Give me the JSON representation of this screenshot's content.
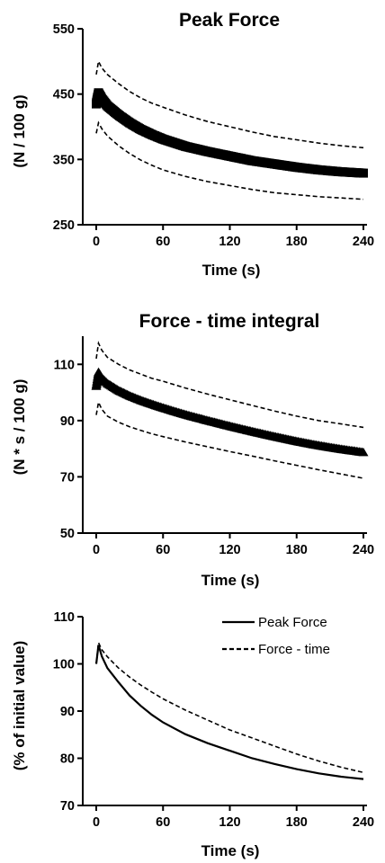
{
  "chart_data": [
    {
      "type": "scatter",
      "title": "Peak Force",
      "xlabel": "Time (s)",
      "ylabel": "(N / 100 g)",
      "xlim": [
        -6,
        246
      ],
      "ylim": [
        250,
        550
      ],
      "xticks": [
        0,
        60,
        120,
        180,
        240
      ],
      "yticks": [
        250,
        350,
        450,
        550
      ],
      "grid": false,
      "series": [
        {
          "role": "mean",
          "style": "square-markers",
          "x": [
            0,
            2,
            5,
            10,
            20,
            30,
            40,
            50,
            60,
            80,
            100,
            120,
            140,
            160,
            180,
            200,
            220,
            240
          ],
          "y": [
            435,
            452,
            443,
            432,
            418,
            406,
            396,
            388,
            381,
            370,
            362,
            355,
            348,
            343,
            338,
            334,
            331,
            329
          ]
        },
        {
          "role": "upper band",
          "style": "dashed",
          "x": [
            0,
            2,
            5,
            10,
            20,
            30,
            40,
            50,
            60,
            80,
            100,
            120,
            140,
            160,
            180,
            200,
            220,
            240
          ],
          "y": [
            480,
            500,
            490,
            480,
            466,
            454,
            444,
            436,
            430,
            418,
            408,
            400,
            392,
            385,
            380,
            375,
            371,
            368
          ]
        },
        {
          "role": "lower band",
          "style": "dashed",
          "x": [
            0,
            2,
            5,
            10,
            20,
            30,
            40,
            50,
            60,
            80,
            100,
            120,
            140,
            160,
            180,
            200,
            220,
            240
          ],
          "y": [
            390,
            406,
            397,
            386,
            371,
            359,
            349,
            341,
            334,
            324,
            316,
            310,
            304,
            299,
            296,
            293,
            291,
            289
          ]
        }
      ]
    },
    {
      "type": "scatter",
      "title": "Force - time integral",
      "xlabel": "Time (s)",
      "ylabel": "(N * s / 100 g)",
      "xlim": [
        -6,
        246
      ],
      "ylim": [
        50,
        120
      ],
      "xticks": [
        0,
        60,
        120,
        180,
        240
      ],
      "yticks": [
        50,
        70,
        90,
        110
      ],
      "grid": false,
      "series": [
        {
          "role": "mean",
          "style": "triangle-markers",
          "x": [
            0,
            2,
            5,
            10,
            20,
            30,
            40,
            50,
            60,
            80,
            100,
            120,
            140,
            160,
            180,
            200,
            220,
            240
          ],
          "y": [
            102,
            107,
            105,
            103,
            100.5,
            98.6,
            97,
            95.6,
            94.3,
            91.9,
            89.8,
            87.8,
            85.9,
            84.1,
            82.4,
            80.9,
            79.6,
            78.5
          ]
        },
        {
          "role": "upper band",
          "style": "dashed",
          "x": [
            0,
            2,
            5,
            10,
            20,
            30,
            40,
            50,
            60,
            80,
            100,
            120,
            140,
            160,
            180,
            200,
            220,
            240
          ],
          "y": [
            112,
            117.5,
            115,
            112.5,
            110,
            108,
            106.5,
            105,
            104,
            101.6,
            99.4,
            97.4,
            95.4,
            93.4,
            91.6,
            90,
            88.8,
            87.6
          ]
        },
        {
          "role": "lower band",
          "style": "dashed",
          "x": [
            0,
            2,
            5,
            10,
            20,
            30,
            40,
            50,
            60,
            80,
            100,
            120,
            140,
            160,
            180,
            200,
            220,
            240
          ],
          "y": [
            92,
            96.5,
            94,
            91.6,
            89.4,
            87.8,
            86.5,
            85.3,
            84.3,
            82.4,
            80.7,
            79,
            77.4,
            75.7,
            74.1,
            72.5,
            71,
            69.5
          ]
        }
      ]
    },
    {
      "type": "line",
      "title": "",
      "xlabel": "Time (s)",
      "ylabel": "(% of initial value)",
      "xlim": [
        -6,
        246
      ],
      "ylim": [
        70,
        110
      ],
      "xticks": [
        0,
        60,
        120,
        180,
        240
      ],
      "yticks": [
        70,
        80,
        90,
        100,
        110
      ],
      "grid": false,
      "legend": "top-right",
      "series": [
        {
          "name": "Peak Force",
          "style": "solid",
          "x": [
            0,
            2,
            5,
            10,
            20,
            30,
            40,
            50,
            60,
            80,
            100,
            120,
            140,
            160,
            180,
            200,
            220,
            240
          ],
          "y": [
            100,
            104,
            101.6,
            99.1,
            96.1,
            93.3,
            91.1,
            89.2,
            87.6,
            85.1,
            83.2,
            81.6,
            80,
            78.8,
            77.7,
            76.8,
            76.1,
            75.6
          ]
        },
        {
          "name": "Force - time",
          "style": "dashed",
          "x": [
            0,
            2,
            5,
            10,
            20,
            30,
            40,
            50,
            60,
            80,
            100,
            120,
            140,
            160,
            180,
            200,
            220,
            240
          ],
          "y": [
            100,
            104.5,
            103,
            101.5,
            99.1,
            97.2,
            95.5,
            94,
            92.6,
            90.2,
            88.1,
            86,
            84.3,
            82.6,
            80.9,
            79.4,
            78.1,
            77
          ]
        }
      ]
    }
  ]
}
